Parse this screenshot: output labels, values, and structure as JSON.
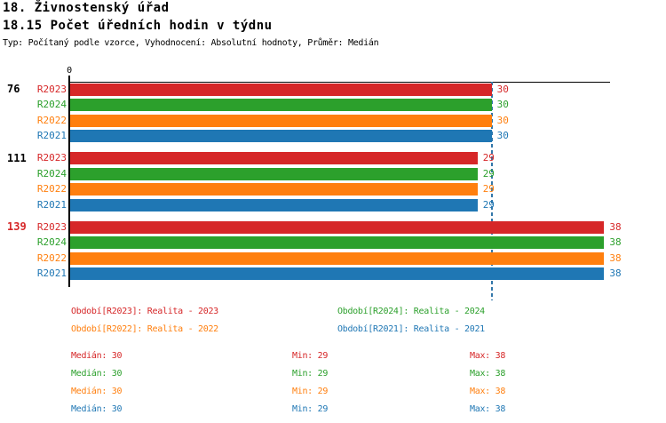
{
  "header": {
    "title_line1": "18. Živnostenský úřad",
    "title_line2": "18.15 Počet úředních hodin v týdnu",
    "subtitle": "Typ: Počítaný podle vzorce, Vyhodnocení: Absolutní hodnoty, Průměr: Medián"
  },
  "colors": {
    "R2023": "#D62728",
    "R2024": "#2CA02C",
    "R2022": "#FF7F0E",
    "R2021": "#1F77B4",
    "axis": "#000000",
    "median_line": "#3377AA",
    "highlight_label": "#D62728",
    "normal_label": "#000000"
  },
  "chart_data": {
    "type": "bar",
    "orientation": "horizontal",
    "title": "18.15 Počet úředních hodin v týdnu",
    "xlabel": "",
    "ylabel": "",
    "axis": {
      "origin_label": "0",
      "x_min": 0,
      "x_max": 38.4,
      "grid": false,
      "median_reference_line": 30
    },
    "series_order": [
      "R2023",
      "R2024",
      "R2022",
      "R2021"
    ],
    "groups": [
      {
        "label": "76",
        "label_color": "#000000",
        "bars": [
          {
            "series": "R2023",
            "value": 30,
            "value_label": "30"
          },
          {
            "series": "R2024",
            "value": 30,
            "value_label": "30"
          },
          {
            "series": "R2022",
            "value": 30,
            "value_label": "30"
          },
          {
            "series": "R2021",
            "value": 30,
            "value_label": "30"
          }
        ]
      },
      {
        "label": "111",
        "label_color": "#000000",
        "bars": [
          {
            "series": "R2023",
            "value": 29,
            "value_label": "29"
          },
          {
            "series": "R2024",
            "value": 29,
            "value_label": "29"
          },
          {
            "series": "R2022",
            "value": 29,
            "value_label": "29"
          },
          {
            "series": "R2021",
            "value": 29,
            "value_label": "29"
          }
        ]
      },
      {
        "label": "139",
        "label_color": "#D62728",
        "bars": [
          {
            "series": "R2023",
            "value": 38,
            "value_label": "38"
          },
          {
            "series": "R2024",
            "value": 38,
            "value_label": "38"
          },
          {
            "series": "R2022",
            "value": 38,
            "value_label": "38"
          },
          {
            "series": "R2021",
            "value": 38,
            "value_label": "38"
          }
        ]
      }
    ]
  },
  "legend": {
    "items": [
      {
        "series": "R2023",
        "label": "Období[R2023]: Realita - 2023"
      },
      {
        "series": "R2024",
        "label": "Období[R2024]: Realita - 2024"
      },
      {
        "series": "R2022",
        "label": "Období[R2022]: Realita - 2022"
      },
      {
        "series": "R2021",
        "label": "Období[R2021]: Realita - 2021"
      }
    ]
  },
  "stats": {
    "labels": {
      "median": "Medián",
      "min": "Min",
      "max": "Max"
    },
    "rows": [
      {
        "series": "R2023",
        "median": "30",
        "min": "29",
        "max": "38"
      },
      {
        "series": "R2024",
        "median": "30",
        "min": "29",
        "max": "38"
      },
      {
        "series": "R2022",
        "median": "30",
        "min": "29",
        "max": "38"
      },
      {
        "series": "R2021",
        "median": "30",
        "min": "29",
        "max": "38"
      }
    ]
  }
}
